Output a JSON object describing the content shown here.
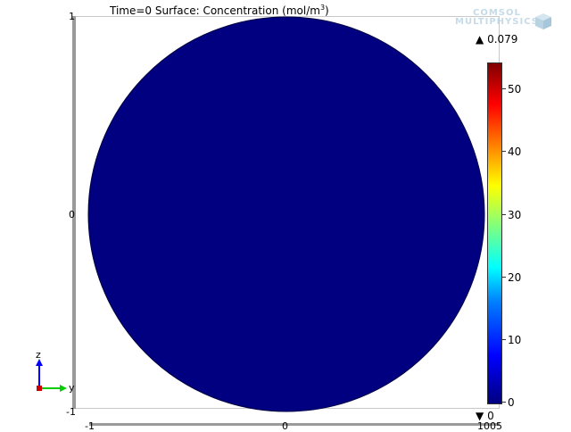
{
  "plot": {
    "title_prefix": "Time=0   Surface: Concentration (mol/m",
    "title_sup": "3",
    "title_suffix": ")",
    "fill_color": "#000080"
  },
  "axes": {
    "y_tick_top": "1",
    "y_tick_mid": "0",
    "y_tick_bottom": "-1",
    "x_tick_left": "-1",
    "x_tick_mid": "0",
    "x_tick_right": "1005"
  },
  "colorbar": {
    "max_marker": "▲",
    "max_value": "0.079",
    "min_marker": "▼",
    "min_value": "0",
    "tick_labels": [
      "50",
      "40",
      "30",
      "20",
      "10",
      "0"
    ]
  },
  "triad": {
    "z_label": "z",
    "y_label": "y",
    "z_color": "#0000ff",
    "y_color": "#00cc00",
    "origin_color": "#cc0000"
  },
  "logo": {
    "line1": "COMSOL",
    "line2": "MULTIPHYSICS"
  }
}
